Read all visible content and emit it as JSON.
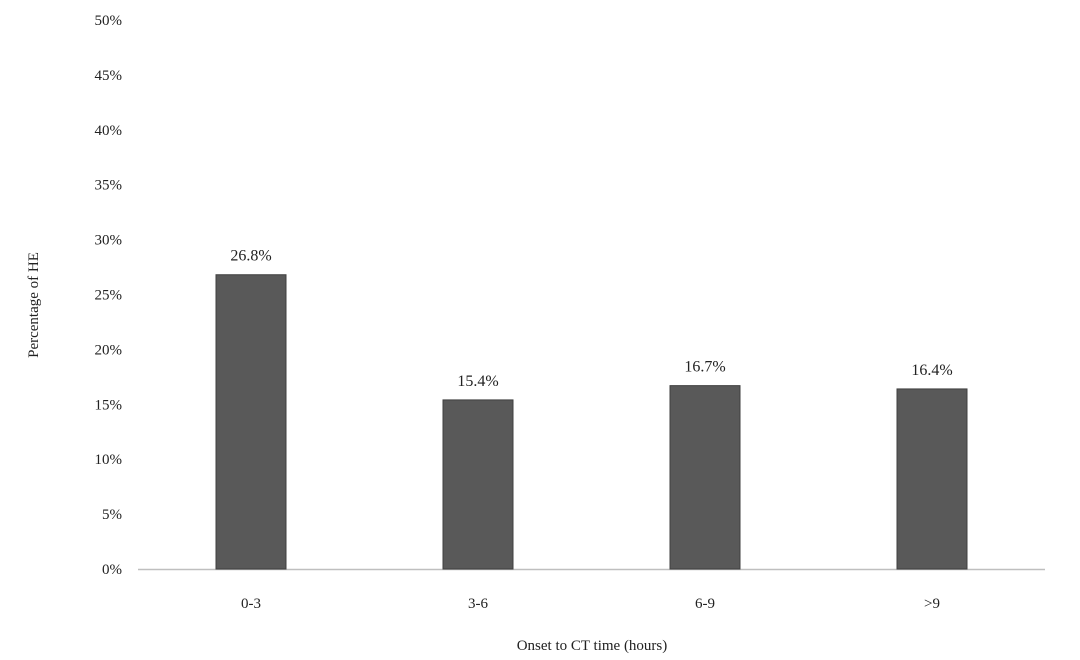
{
  "chart_data": {
    "type": "bar",
    "title": "",
    "xlabel": "Onset to CT time (hours)",
    "ylabel": "Percentage of HE",
    "categories": [
      "0-3",
      "3-6",
      "6-9",
      ">9"
    ],
    "values": [
      26.8,
      15.4,
      16.7,
      16.4
    ],
    "data_labels": [
      "26.8%",
      "15.4%",
      "16.7%",
      "16.4%"
    ],
    "ylim": [
      0,
      50
    ],
    "yticks": [
      0,
      5,
      10,
      15,
      20,
      25,
      30,
      35,
      40,
      45,
      50
    ],
    "ytick_labels": [
      "0%",
      "5%",
      "10%",
      "15%",
      "20%",
      "25%",
      "30%",
      "35%",
      "40%",
      "45%",
      "50%"
    ],
    "grid": false,
    "legend": "none",
    "bar_color": "#595959",
    "axis_color": "#bfbfbf"
  }
}
